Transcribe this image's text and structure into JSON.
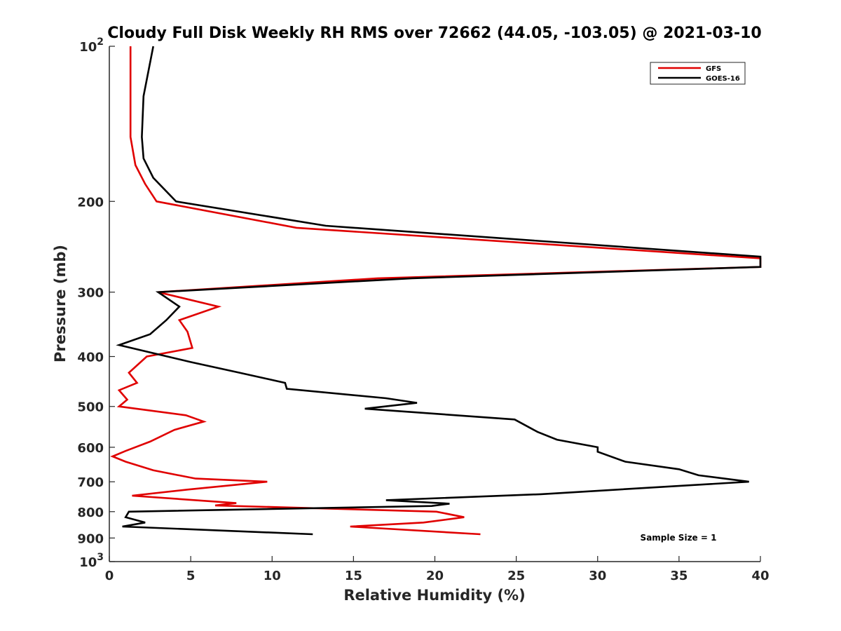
{
  "chart_data": {
    "type": "line",
    "title": "Cloudy Full Disk Weekly RH RMS over 72662 (44.05, -103.05) @ 2021-03-10",
    "xlabel": "Relative Humidity (%)",
    "ylabel": "Pressure (mb)",
    "xlim": [
      0,
      40
    ],
    "ylim": [
      100,
      1000
    ],
    "yscale": "log",
    "y_reversed": true,
    "grid": false,
    "legend_position": "top-right",
    "annotation": "Sample Size = 1",
    "x_ticks": [
      {
        "value": 0,
        "label": "0"
      },
      {
        "value": 5,
        "label": "5"
      },
      {
        "value": 10,
        "label": "10"
      },
      {
        "value": 15,
        "label": "15"
      },
      {
        "value": 20,
        "label": "20"
      },
      {
        "value": 25,
        "label": "25"
      },
      {
        "value": 30,
        "label": "30"
      },
      {
        "value": 35,
        "label": "35"
      },
      {
        "value": 40,
        "label": "40"
      }
    ],
    "y_ticks": [
      {
        "value": 100,
        "base": "10",
        "exp": "2"
      },
      {
        "value": 200,
        "label": "200"
      },
      {
        "value": 300,
        "label": "300"
      },
      {
        "value": 400,
        "label": "400"
      },
      {
        "value": 500,
        "label": "500"
      },
      {
        "value": 600,
        "label": "600"
      },
      {
        "value": 700,
        "label": "700"
      },
      {
        "value": 800,
        "label": "800"
      },
      {
        "value": 900,
        "label": "900"
      },
      {
        "value": 1000,
        "base": "10",
        "exp": "3"
      }
    ],
    "series": [
      {
        "name": "GFS",
        "color": "#e00000",
        "points": [
          [
            1.3,
            100
          ],
          [
            1.3,
            150
          ],
          [
            1.6,
            170
          ],
          [
            2.2,
            185
          ],
          [
            2.9,
            200
          ],
          [
            11.5,
            225
          ],
          [
            40,
            258
          ],
          [
            40,
            268
          ],
          [
            16.5,
            282
          ],
          [
            3.0,
            300
          ],
          [
            6.7,
            320
          ],
          [
            4.3,
            340
          ],
          [
            4.8,
            358
          ],
          [
            5.1,
            385
          ],
          [
            2.3,
            400
          ],
          [
            1.2,
            430
          ],
          [
            1.7,
            450
          ],
          [
            0.6,
            465
          ],
          [
            1.1,
            485
          ],
          [
            0.6,
            500
          ],
          [
            4.7,
            520
          ],
          [
            5.8,
            535
          ],
          [
            4.0,
            555
          ],
          [
            2.5,
            585
          ],
          [
            1.0,
            610
          ],
          [
            0.2,
            625
          ],
          [
            1.0,
            640
          ],
          [
            2.7,
            665
          ],
          [
            5.3,
            690
          ],
          [
            9.7,
            700
          ],
          [
            4.8,
            725
          ],
          [
            1.4,
            745
          ],
          [
            7.8,
            770
          ],
          [
            6.5,
            778
          ],
          [
            20.1,
            800
          ],
          [
            21.8,
            820
          ],
          [
            19.3,
            840
          ],
          [
            14.8,
            855
          ],
          [
            22.8,
            885
          ]
        ]
      },
      {
        "name": "GOES-16",
        "color": "#000000",
        "points": [
          [
            2.7,
            100
          ],
          [
            2.1,
            125
          ],
          [
            2.0,
            150
          ],
          [
            2.1,
            165
          ],
          [
            2.7,
            180
          ],
          [
            4.1,
            200
          ],
          [
            13.3,
            223
          ],
          [
            40,
            256
          ],
          [
            40,
            268
          ],
          [
            18.6,
            282
          ],
          [
            3.0,
            300
          ],
          [
            4.3,
            320
          ],
          [
            3.5,
            340
          ],
          [
            2.5,
            362
          ],
          [
            0.6,
            380
          ],
          [
            5.0,
            410
          ],
          [
            8.0,
            430
          ],
          [
            10.8,
            450
          ],
          [
            10.9,
            462
          ],
          [
            17.0,
            482
          ],
          [
            18.9,
            492
          ],
          [
            15.7,
            505
          ],
          [
            24.9,
            530
          ],
          [
            26.3,
            560
          ],
          [
            27.5,
            580
          ],
          [
            30.0,
            600
          ],
          [
            30.0,
            612
          ],
          [
            31.7,
            640
          ],
          [
            35.0,
            662
          ],
          [
            36.2,
            680
          ],
          [
            39.3,
            700
          ],
          [
            26.5,
            740
          ],
          [
            17.0,
            760
          ],
          [
            20.9,
            772
          ],
          [
            19.8,
            780
          ],
          [
            1.2,
            800
          ],
          [
            1.0,
            820
          ],
          [
            2.2,
            840
          ],
          [
            0.8,
            855
          ],
          [
            12.5,
            885
          ]
        ]
      }
    ]
  }
}
